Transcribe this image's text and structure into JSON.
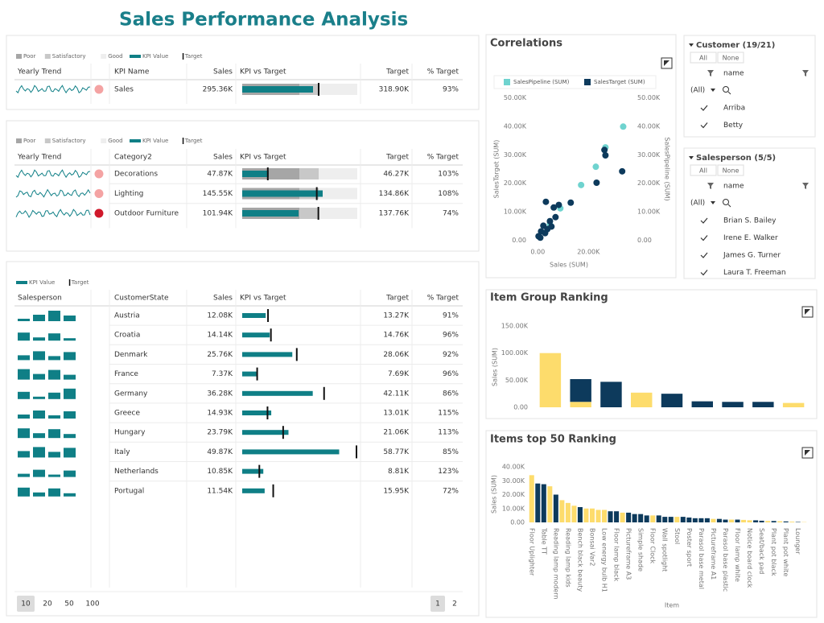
{
  "title": "Sales Performance Analysis",
  "kpi_table": {
    "legend": [
      "Poor",
      "Satisfactory",
      "Good",
      "KPI Value",
      "Target"
    ],
    "columns": [
      "Yearly Trend",
      "KPI Name",
      "Sales",
      "KPI vs Target",
      "Target",
      "% Target"
    ],
    "rows": [
      {
        "name": "Sales",
        "status_color": "#f4a3a3",
        "sales": {
          "value": 295360,
          "label": "295.36K"
        },
        "target": {
          "value": 318900,
          "label": "318.90K"
        },
        "pct": "93%"
      }
    ]
  },
  "category_table": {
    "legend": [
      "Poor",
      "Satisfactory",
      "Good",
      "KPI Value",
      "Target"
    ],
    "columns": [
      "Yearly Trend",
      "Category2",
      "Sales",
      "KPI vs Target",
      "Target",
      "% Target"
    ],
    "rows": [
      {
        "name": "Decorations",
        "status_color": "#f4a3a3",
        "sales": {
          "value": 47870,
          "label": "47.87K"
        },
        "target": {
          "value": 46270,
          "label": "46.27K"
        },
        "pct": "103%"
      },
      {
        "name": "Lighting",
        "status_color": "#f4a3a3",
        "sales": {
          "value": 145550,
          "label": "145.55K"
        },
        "target": {
          "value": 134860,
          "label": "134.86K"
        },
        "pct": "108%"
      },
      {
        "name": "Outdoor Furniture",
        "status_color": "#d0192b",
        "sales": {
          "value": 101940,
          "label": "101.94K"
        },
        "target": {
          "value": 137760,
          "label": "137.76K"
        },
        "pct": "74%"
      }
    ]
  },
  "state_table": {
    "legend": [
      "KPI Value",
      "Target"
    ],
    "columns": [
      "Salesperson",
      "CustomerState",
      "Sales",
      "KPI vs Target",
      "Target",
      "% Target"
    ],
    "rows": [
      {
        "name": "Austria",
        "sales": {
          "value": 12080,
          "label": "12.08K"
        },
        "target": {
          "value": 13270,
          "label": "13.27K"
        },
        "pct": "91%"
      },
      {
        "name": "Croatia",
        "sales": {
          "value": 14140,
          "label": "14.14K"
        },
        "target": {
          "value": 14760,
          "label": "14.76K"
        },
        "pct": "96%"
      },
      {
        "name": "Denmark",
        "sales": {
          "value": 25760,
          "label": "25.76K"
        },
        "target": {
          "value": 28060,
          "label": "28.06K"
        },
        "pct": "92%"
      },
      {
        "name": "France",
        "sales": {
          "value": 7370,
          "label": "7.37K"
        },
        "target": {
          "value": 7690,
          "label": "7.69K"
        },
        "pct": "96%"
      },
      {
        "name": "Germany",
        "sales": {
          "value": 36280,
          "label": "36.28K"
        },
        "target": {
          "value": 42110,
          "label": "42.11K"
        },
        "pct": "86%"
      },
      {
        "name": "Greece",
        "sales": {
          "value": 14930,
          "label": "14.93K"
        },
        "target": {
          "value": 13010,
          "label": "13.01K"
        },
        "pct": "115%"
      },
      {
        "name": "Hungary",
        "sales": {
          "value": 23790,
          "label": "23.79K"
        },
        "target": {
          "value": 21060,
          "label": "21.06K"
        },
        "pct": "113%"
      },
      {
        "name": "Italy",
        "sales": {
          "value": 49870,
          "label": "49.87K"
        },
        "target": {
          "value": 58770,
          "label": "58.77K"
        },
        "pct": "85%"
      },
      {
        "name": "Netherlands",
        "sales": {
          "value": 10850,
          "label": "10.85K"
        },
        "target": {
          "value": 8810,
          "label": "8.81K"
        },
        "pct": "123%"
      },
      {
        "name": "Portugal",
        "sales": {
          "value": 11540,
          "label": "11.54K"
        },
        "target": {
          "value": 15950,
          "label": "15.95K"
        },
        "pct": "72%"
      }
    ],
    "page_sizes": [
      "10",
      "20",
      "50",
      "100"
    ],
    "pages": [
      "1",
      "2"
    ]
  },
  "customer_filter": {
    "title": "Customer (19/21)",
    "buttons": [
      "All",
      "None"
    ],
    "field": "name",
    "option": "(All)",
    "items": [
      "Arriba",
      "Betty"
    ]
  },
  "salesperson_filter": {
    "title": "Salesperson (5/5)",
    "buttons": [
      "All",
      "None"
    ],
    "field": "name",
    "option": "(All)",
    "items": [
      "Brian S. Bailey",
      "Irene E. Walker",
      "James G. Turner",
      "Laura T. Freeman"
    ]
  },
  "chart_data": [
    {
      "type": "scatter",
      "title": "Correlations",
      "x_label": "Sales (SUM)",
      "y_label": "SalesTarget (SUM)",
      "y2_label": "SalesPipeline (SUM)",
      "xlim": [
        -2000,
        38000
      ],
      "xticks": [
        {
          "value": 0,
          "label": "0.00"
        },
        {
          "value": 20000,
          "label": "20.00K"
        }
      ],
      "ylim": [
        -1000,
        51000
      ],
      "yticks": [
        {
          "value": 0,
          "label": "0.00"
        },
        {
          "value": 10000,
          "label": "10.00K"
        },
        {
          "value": 20000,
          "label": "20.00K"
        },
        {
          "value": 30000,
          "label": "30.00K"
        },
        {
          "value": 40000,
          "label": "40.00K"
        },
        {
          "value": 50000,
          "label": "50.00K"
        }
      ],
      "y2lim": [
        -1000,
        51000
      ],
      "y2ticks": [
        {
          "value": 0,
          "label": "0.00"
        },
        {
          "value": 10000,
          "label": "10.00K"
        },
        {
          "value": 20000,
          "label": "20.00K"
        },
        {
          "value": 30000,
          "label": "30.00K"
        },
        {
          "value": 40000,
          "label": "40.00K"
        },
        {
          "value": 50000,
          "label": "50.00K"
        }
      ],
      "series": [
        {
          "name": "SalesPipeline (SUM)",
          "color": "#6fd3cf",
          "axis": "y2",
          "x": [
            33700,
            26700,
            22900,
            17100,
            8900,
            4800
          ],
          "values": [
            39900,
            32600,
            25800,
            19400,
            11200,
            5600
          ]
        },
        {
          "name": "SalesTarget (SUM)",
          "color": "#0d3a5c",
          "x": [
            33300,
            26300,
            26700,
            23200,
            13000,
            8300,
            6300,
            3200,
            7000,
            4800,
            2200,
            1300,
            300,
            3800,
            5400,
            2900,
            1000
          ],
          "values": [
            24200,
            31700,
            29800,
            20200,
            13200,
            12400,
            11500,
            13500,
            8100,
            6700,
            5100,
            3100,
            1400,
            3900,
            4800,
            2500,
            900
          ]
        }
      ]
    },
    {
      "type": "stacked_bar",
      "title": "Item Group Ranking",
      "y_label": "Sales (SUM)",
      "categories": [
        null,
        null,
        null,
        null,
        null,
        null,
        null,
        null,
        null
      ],
      "ylim": [
        0,
        150000
      ],
      "yticks": [
        {
          "value": 0,
          "label": "0.00"
        },
        {
          "value": 50000,
          "label": "50.00K"
        },
        {
          "value": 100000,
          "label": "100.00K"
        },
        {
          "value": 150000,
          "label": "150.00K"
        }
      ],
      "series": [
        {
          "color": "#fddc6c",
          "values": [
            100000,
            10000,
            0,
            27000,
            0,
            0,
            0,
            0,
            8000
          ]
        },
        {
          "color": "#0d3a5c",
          "values": [
            0,
            42000,
            47000,
            0,
            25000,
            11000,
            10000,
            10000,
            0
          ]
        }
      ]
    },
    {
      "type": "bar",
      "title": "Items top 50 Ranking",
      "x_label": "Item",
      "y_label": "Sales (SUM)",
      "categories": [
        "Floor Uplighter",
        null,
        "Table TT",
        null,
        "Reading lamp modern",
        null,
        "Reading lamp kids",
        null,
        "Bench black beauty",
        null,
        "Bonsai Var2",
        null,
        "Low energy bulb H1",
        null,
        "Floor lamp black",
        null,
        "Pictureframe A3",
        null,
        "Simple shade",
        null,
        "Floor Clock",
        null,
        "Wall spotlight",
        null,
        "Stool",
        null,
        "Poster sport",
        null,
        "Parasol base metal",
        null,
        "Pictureframe A1",
        null,
        "Parasol base plastic",
        null,
        "Floor lamp white",
        null,
        "Notice board clock",
        null,
        "Seat/back pad",
        null,
        "Plant pot black",
        null,
        "Plant pot white",
        null,
        "Lounger",
        null
      ],
      "values": [
        34000,
        28000,
        27500,
        26000,
        20000,
        16000,
        14000,
        12000,
        11000,
        10000,
        10000,
        9000,
        9000,
        8000,
        8000,
        7000,
        7000,
        6000,
        6000,
        5000,
        5000,
        5000,
        4000,
        4000,
        4000,
        4000,
        3500,
        3000,
        3000,
        3000,
        2500,
        2500,
        2000,
        2000,
        2000,
        1800,
        1500,
        1500,
        1200,
        1000,
        1000,
        800,
        700,
        500,
        300,
        200
      ],
      "colors": [
        "#fddc6c",
        "#0d3a5c",
        "#0d3a5c",
        "#fddc6c",
        "#0d3a5c",
        "#fddc6c",
        "#fddc6c",
        "#fddc6c",
        "#0d3a5c",
        "#fddc6c",
        "#fddc6c",
        "#fddc6c",
        "#fddc6c",
        "#0d3a5c",
        "#0d3a5c",
        "#fddc6c",
        "#0d3a5c",
        "#0d3a5c",
        "#0d3a5c",
        "#0d3a5c",
        "#fddc6c",
        "#0d3a5c",
        "#0d3a5c",
        "#0d3a5c",
        "#fddc6c",
        "#0d3a5c",
        "#0d3a5c",
        "#0d3a5c",
        "#0d3a5c",
        "#0d3a5c",
        "#fddc6c",
        "#0d3a5c",
        "#0d3a5c",
        "#fddc6c",
        "#0d3a5c",
        "#fddc6c",
        "#fddc6c",
        "#0d3a5c",
        "#0d3a5c",
        "#fddc6c",
        "#0d3a5c",
        "#fddc6c",
        "#0d3a5c",
        "#fddc6c",
        "#0d3a5c",
        "#fddc6c"
      ],
      "ylim": [
        0,
        40000
      ],
      "yticks": [
        {
          "value": 0,
          "label": "0.00"
        },
        {
          "value": 10000,
          "label": "10.00K"
        },
        {
          "value": 20000,
          "label": "20.00K"
        },
        {
          "value": 30000,
          "label": "30.00K"
        },
        {
          "value": 40000,
          "label": "40.00K"
        }
      ]
    }
  ]
}
